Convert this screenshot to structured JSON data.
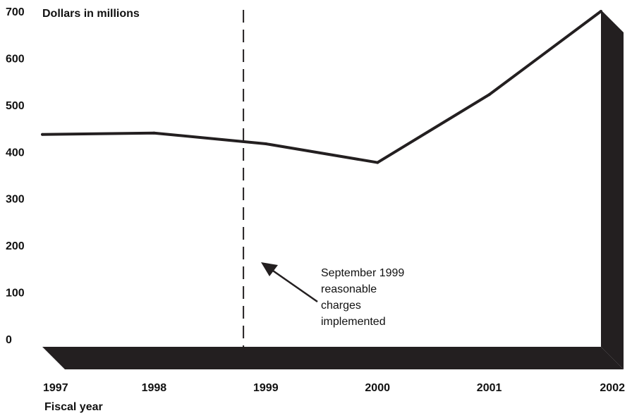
{
  "chart_data": {
    "type": "line",
    "ylabel": "Dollars in millions",
    "xlabel": "Fiscal year",
    "ylim": [
      0,
      700
    ],
    "yticks": [
      "0",
      "100",
      "200",
      "300",
      "400",
      "500",
      "600",
      "700"
    ],
    "categories": [
      "1997",
      "1998",
      "1999",
      "2000",
      "2001",
      "2002"
    ],
    "series": [
      {
        "values": [
          437,
          440,
          417,
          377,
          522,
          700
        ]
      }
    ],
    "marker": {
      "position": 1998.8,
      "style": "dashed"
    },
    "annotation": {
      "lines": [
        "September 1999",
        "reasonable",
        "charges",
        "implemented"
      ]
    },
    "grid": false,
    "legend": "none",
    "colors": {
      "line": "#231f20",
      "base": "#231f20"
    }
  }
}
